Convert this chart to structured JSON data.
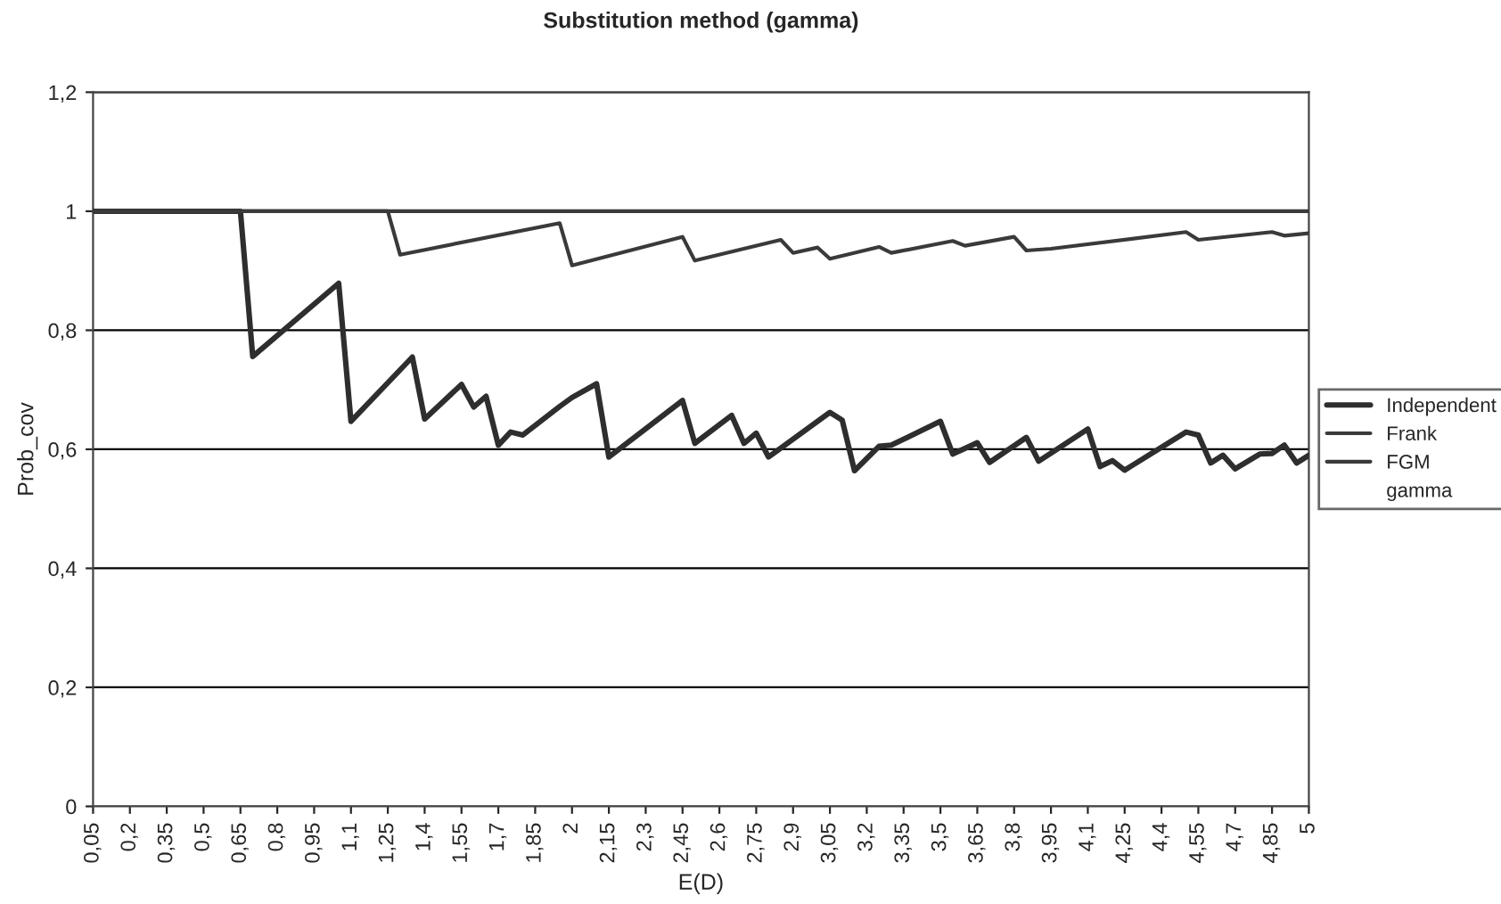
{
  "chart_data": {
    "type": "line",
    "title": "Substitution method (gamma)",
    "xlabel": "E(D)",
    "ylabel": "Prob_cov",
    "xlim": [
      0.05,
      5
    ],
    "xticks": [
      {
        "value": 0.05,
        "label": "0,05"
      },
      {
        "value": 0.2,
        "label": "0,2"
      },
      {
        "value": 0.35,
        "label": "0,35"
      },
      {
        "value": 0.5,
        "label": "0,5"
      },
      {
        "value": 0.65,
        "label": "0,65"
      },
      {
        "value": 0.8,
        "label": "0,8"
      },
      {
        "value": 0.95,
        "label": "0,95"
      },
      {
        "value": 1.1,
        "label": "1,1"
      },
      {
        "value": 1.25,
        "label": "1,25"
      },
      {
        "value": 1.4,
        "label": "1,4"
      },
      {
        "value": 1.55,
        "label": "1,55"
      },
      {
        "value": 1.7,
        "label": "1,7"
      },
      {
        "value": 1.85,
        "label": "1,85"
      },
      2,
      {
        "value": 2.15,
        "label": "2,15"
      },
      {
        "value": 2.3,
        "label": "2,3"
      },
      {
        "value": 2.45,
        "label": "2,45"
      },
      {
        "value": 2.6,
        "label": "2,6"
      },
      {
        "value": 2.75,
        "label": "2,75"
      },
      {
        "value": 2.9,
        "label": "2,9"
      },
      {
        "value": 3.05,
        "label": "3,05"
      },
      {
        "value": 3.2,
        "label": "3,2"
      },
      {
        "value": 3.35,
        "label": "3,35"
      },
      {
        "value": 3.5,
        "label": "3,5"
      },
      {
        "value": 3.65,
        "label": "3,65"
      },
      {
        "value": 3.8,
        "label": "3,8"
      },
      {
        "value": 3.95,
        "label": "3,95"
      },
      {
        "value": 4.1,
        "label": "4,1"
      },
      {
        "value": 4.25,
        "label": "4,25"
      },
      {
        "value": 4.4,
        "label": "4,4"
      },
      {
        "value": 4.55,
        "label": "4,55"
      },
      {
        "value": 4.7,
        "label": "4,7"
      },
      {
        "value": 4.85,
        "label": "4,85"
      },
      5
    ],
    "ylim": [
      0,
      1.2
    ],
    "yticks": [
      0,
      {
        "value": 0.2,
        "label": "0,2"
      },
      {
        "value": 0.4,
        "label": "0,4"
      },
      {
        "value": 0.6,
        "label": "0,6"
      },
      {
        "value": 0.8,
        "label": "0,8"
      },
      1,
      {
        "value": 1.2,
        "label": "1,2"
      }
    ],
    "grid": "y",
    "legend": "right",
    "marker": "none",
    "line_style": "solid",
    "annotations": [
      "gamma"
    ],
    "series": [
      {
        "name": "Independent",
        "color": "#2e2e2e",
        "x": [
          0.05,
          0.65,
          0.7,
          1.05,
          1.1,
          1.35,
          1.4,
          1.55,
          1.6,
          1.65,
          1.7,
          1.75,
          1.8,
          1.95,
          2.0,
          2.1,
          2.15,
          2.45,
          2.5,
          2.65,
          2.7,
          2.75,
          2.8,
          3.05,
          3.1,
          3.15,
          3.25,
          3.3,
          3.5,
          3.55,
          3.65,
          3.7,
          3.85,
          3.9,
          4.1,
          4.15,
          4.2,
          4.25,
          4.5,
          4.55,
          4.6,
          4.65,
          4.7,
          4.8,
          4.85,
          4.9,
          4.95,
          5.0
        ],
        "values": [
          1,
          1,
          0.756,
          0.879,
          0.647,
          0.755,
          0.651,
          0.709,
          0.671,
          0.689,
          0.607,
          0.629,
          0.624,
          0.672,
          0.687,
          0.71,
          0.587,
          0.682,
          0.61,
          0.657,
          0.61,
          0.627,
          0.587,
          0.662,
          0.649,
          0.564,
          0.605,
          0.607,
          0.647,
          0.592,
          0.611,
          0.578,
          0.62,
          0.58,
          0.634,
          0.571,
          0.581,
          0.565,
          0.629,
          0.624,
          0.577,
          0.59,
          0.567,
          0.592,
          0.593,
          0.607,
          0.577,
          0.59
        ]
      },
      {
        "name": "Frank",
        "color": "#3a3a3a",
        "x": [
          0.05,
          1.25,
          1.3,
          1.95,
          2.0,
          2.45,
          2.5,
          2.85,
          2.9,
          3.0,
          3.05,
          3.25,
          3.3,
          3.55,
          3.6,
          3.8,
          3.85,
          3.95,
          4.5,
          4.55,
          4.85,
          4.9,
          5.0
        ],
        "values": [
          1,
          1,
          0.927,
          0.98,
          0.909,
          0.957,
          0.917,
          0.952,
          0.93,
          0.939,
          0.92,
          0.94,
          0.93,
          0.95,
          0.942,
          0.957,
          0.934,
          0.937,
          0.965,
          0.952,
          0.965,
          0.959,
          0.963
        ]
      },
      {
        "name": "FGM",
        "color": "#3a3a3a",
        "x": [
          0.05,
          5.0
        ],
        "values": [
          1,
          1
        ]
      }
    ]
  }
}
